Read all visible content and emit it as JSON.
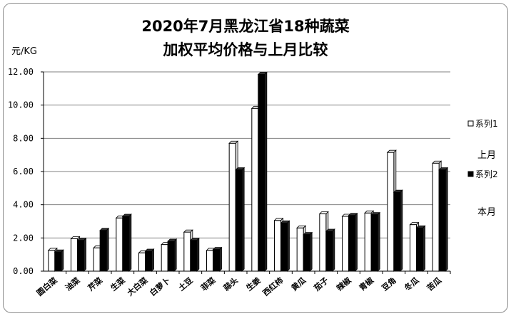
{
  "chart_data": {
    "type": "bar",
    "title_line1": "2020年7月黑龙江省18种蔬菜",
    "title_line2": "加权平均价格与上月比较",
    "ylabel": "元/KG",
    "xlabel": "",
    "ylim": [
      0,
      12
    ],
    "ytick_labels": [
      "0.00",
      "2.00",
      "4.00",
      "6.00",
      "8.00",
      "10.00",
      "12.00"
    ],
    "grid": true,
    "legend_position": "right",
    "categories": [
      "圆白菜",
      "油菜",
      "芹菜",
      "生菜",
      "大白菜",
      "白萝卜",
      "土豆",
      "菲菜",
      "蒜头",
      "生姜",
      "西红柿",
      "黄瓜",
      "茄子",
      "辣椒",
      "青椒",
      "豆角",
      "冬瓜",
      "苦瓜"
    ],
    "series": [
      {
        "name": "系列1",
        "color": "#ffffff",
        "values": [
          1.25,
          1.95,
          1.4,
          3.2,
          1.1,
          1.6,
          2.35,
          1.25,
          7.7,
          9.8,
          3.05,
          2.6,
          3.45,
          3.3,
          3.5,
          7.15,
          2.8,
          6.5
        ]
      },
      {
        "name": "系列2",
        "color": "#000000",
        "values": [
          1.15,
          1.85,
          2.45,
          3.3,
          1.2,
          1.8,
          1.85,
          1.3,
          6.1,
          11.85,
          2.9,
          2.2,
          2.4,
          3.35,
          3.4,
          4.75,
          2.6,
          6.1
        ]
      }
    ],
    "annotations": [
      "上月",
      "本月"
    ]
  }
}
